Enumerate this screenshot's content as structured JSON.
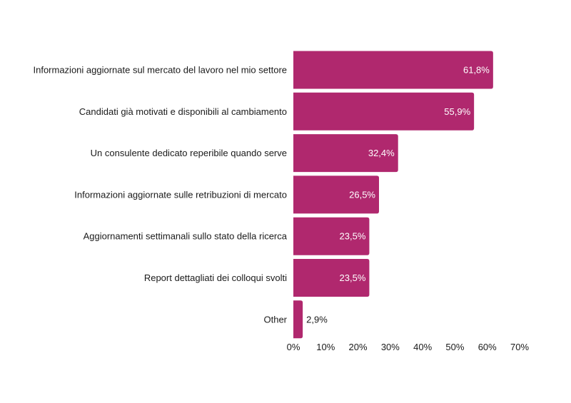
{
  "chart_data": {
    "type": "bar",
    "orientation": "horizontal",
    "categories": [
      "Informazioni aggiornate sul mercato del lavoro nel mio settore",
      "Candidati già motivati e disponibili al cambiamento",
      "Un consulente dedicato reperibile quando serve",
      "Informazioni aggiornate sulle retribuzioni di mercato",
      "Aggiornamenti settimanali sullo stato della ricerca",
      "Report dettagliati dei colloqui svolti",
      "Other"
    ],
    "values": [
      61.8,
      55.9,
      32.4,
      26.5,
      23.5,
      23.5,
      2.9
    ],
    "value_labels": [
      "61,8%",
      "55,9%",
      "32,4%",
      "26,5%",
      "23,5%",
      "23,5%",
      "2,9%"
    ],
    "xlim": [
      0,
      70
    ],
    "x_ticks": [
      0,
      10,
      20,
      30,
      40,
      50,
      60,
      70
    ],
    "x_tick_labels": [
      "0%",
      "10%",
      "20%",
      "30%",
      "40%",
      "50%",
      "60%",
      "70%"
    ],
    "bar_color": "#B0286E",
    "label_inside_color": "#ffffff",
    "label_outside_color": "#1a1a1a",
    "grid": false,
    "legend": "none"
  }
}
